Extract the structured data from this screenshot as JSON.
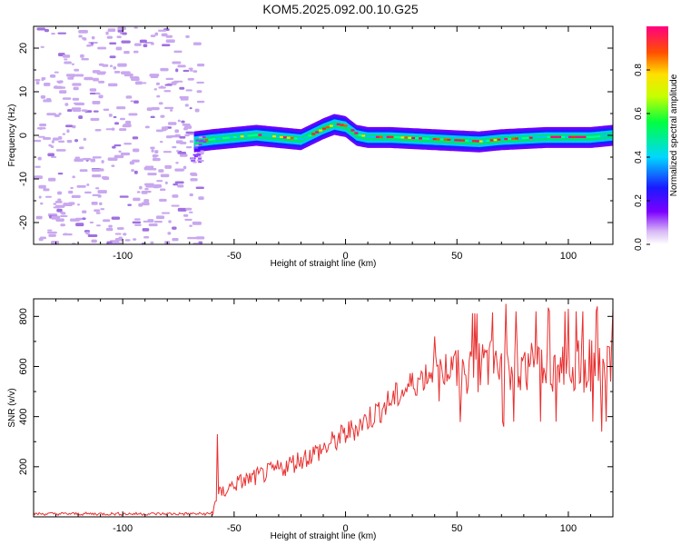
{
  "title": "KOM5.2025.092.00.10.G25",
  "colors": {
    "snr_line": "#e8302f",
    "noise": "#c9a8ef",
    "noise_dark": "#a070e0",
    "axis": "#000000"
  },
  "chart_data": [
    {
      "type": "heatmap",
      "title": "KOM5.2025.092.00.10.G25",
      "xlabel": "Height of straight line (km)",
      "ylabel": "Frequency (Hz)",
      "xlim": [
        -140,
        120
      ],
      "ylim": [
        -25,
        25
      ],
      "x_ticks": [
        -100,
        -50,
        0,
        50,
        100
      ],
      "y_ticks": [
        -20,
        -10,
        0,
        10,
        20
      ],
      "colorbar": {
        "label": "Normalized spectral amplitude",
        "range": [
          0,
          1
        ],
        "ticks": [
          0.0,
          0.2,
          0.4,
          0.6,
          0.8
        ],
        "colormap": "white-purple-blue-cyan-green-yellow-red-magenta"
      },
      "signal_ridge": {
        "x": [
          -68,
          -60,
          -50,
          -40,
          -30,
          -20,
          -10,
          -5,
          0,
          5,
          10,
          20,
          40,
          60,
          70,
          90,
          110,
          120
        ],
        "frequency": [
          -1.5,
          -1,
          -0.5,
          0,
          -0.5,
          -1,
          1.5,
          2.5,
          2,
          0,
          -0.5,
          -0.5,
          -1,
          -1.5,
          -1,
          -0.5,
          -0.5,
          0
        ]
      },
      "noise_region_x": [
        -140,
        -66
      ]
    },
    {
      "type": "line",
      "xlabel": "Height of straight line (km)",
      "ylabel": "SNR (v/v)",
      "xlim": [
        -140,
        120
      ],
      "ylim": [
        0,
        870
      ],
      "x_ticks": [
        -100,
        -50,
        0,
        50,
        100
      ],
      "y_ticks": [
        200,
        400,
        600,
        800
      ],
      "trend": {
        "x": [
          -140,
          -60,
          -58,
          -50,
          -40,
          -30,
          -20,
          -10,
          0,
          10,
          20,
          30,
          40,
          50,
          60,
          70,
          80,
          90,
          100,
          110,
          120
        ],
        "snr": [
          12,
          12,
          80,
          130,
          160,
          190,
          230,
          270,
          330,
          390,
          460,
          530,
          590,
          600,
          590,
          600,
          600,
          600,
          600,
          600,
          600
        ]
      },
      "spikes": [
        {
          "x": -57.5,
          "snr": 330
        },
        {
          "x": 71,
          "snr": 360
        },
        {
          "x": 72,
          "snr": 850
        },
        {
          "x": 91,
          "snr": 835
        },
        {
          "x": 100,
          "snr": 830
        },
        {
          "x": 113,
          "snr": 840
        },
        {
          "x": 115,
          "snr": 340
        },
        {
          "x": 120,
          "snr": 830
        }
      ]
    }
  ]
}
